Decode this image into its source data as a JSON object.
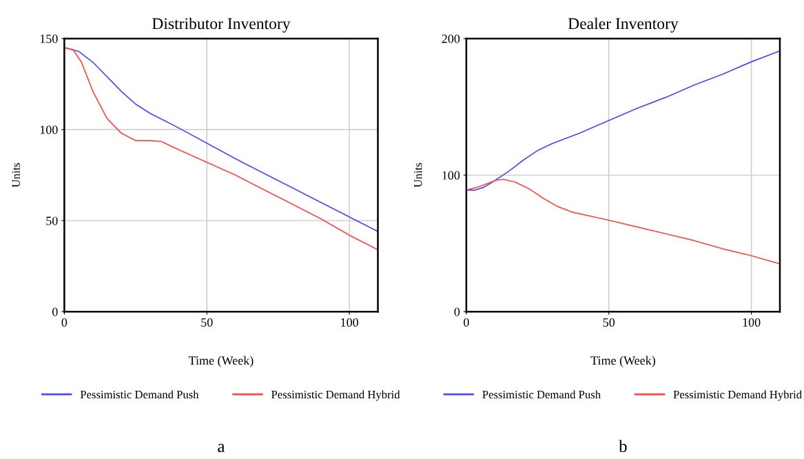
{
  "chart_data": [
    {
      "type": "line",
      "title": "Distributor Inventory",
      "xlabel": "Time (Week)",
      "ylabel": "Units",
      "xlim": [
        0,
        110
      ],
      "ylim": [
        0,
        150
      ],
      "xticks": [
        0,
        50,
        100
      ],
      "yticks": [
        0,
        50,
        100,
        150
      ],
      "grid": true,
      "legend": "bottom",
      "annotations": [
        "a"
      ],
      "series": [
        {
          "name": "Pessimistic Demand Push",
          "color": "#4a4aff",
          "x": [
            0,
            5,
            10,
            15,
            20,
            25,
            30,
            35,
            40,
            50,
            60,
            70,
            80,
            90,
            100,
            110
          ],
          "values": [
            145,
            143,
            137,
            129,
            121,
            114,
            109,
            105,
            101,
            92.5,
            84,
            76,
            68,
            60,
            52,
            44
          ]
        },
        {
          "name": "Pessimistic Demand Hybrid",
          "color": "#ff4a4a",
          "x": [
            0,
            3,
            6,
            10,
            15,
            20,
            25,
            30,
            34,
            40,
            50,
            60,
            70,
            80,
            90,
            100,
            110
          ],
          "values": [
            145,
            144,
            137,
            121,
            106,
            98,
            94,
            94,
            93.5,
            89,
            82,
            75,
            67,
            59,
            51,
            42,
            34
          ]
        }
      ]
    },
    {
      "type": "line",
      "title": "Dealer Inventory",
      "xlabel": "Time (Week)",
      "ylabel": "Units",
      "xlim": [
        0,
        110
      ],
      "ylim": [
        0,
        200
      ],
      "xticks": [
        0,
        50,
        100
      ],
      "yticks": [
        0,
        100,
        200
      ],
      "grid": true,
      "legend": "bottom",
      "annotations": [
        "b"
      ],
      "series": [
        {
          "name": "Pessimistic Demand Push",
          "color": "#4a4aff",
          "x": [
            0,
            3,
            6,
            10,
            15,
            20,
            25,
            30,
            40,
            50,
            60,
            70,
            80,
            90,
            100,
            110
          ],
          "values": [
            89,
            89,
            91,
            96,
            103,
            111,
            118,
            123,
            131,
            140,
            149,
            157,
            166,
            174,
            183,
            191
          ]
        },
        {
          "name": "Pessimistic Demand Hybrid",
          "color": "#ff4a4a",
          "x": [
            0,
            5,
            10,
            13,
            17,
            22,
            27,
            32,
            37,
            50,
            60,
            70,
            80,
            90,
            100,
            110
          ],
          "values": [
            89,
            92,
            96,
            97,
            95,
            90,
            83,
            77,
            73,
            67,
            62,
            57,
            52,
            46,
            41,
            35
          ]
        }
      ]
    }
  ]
}
